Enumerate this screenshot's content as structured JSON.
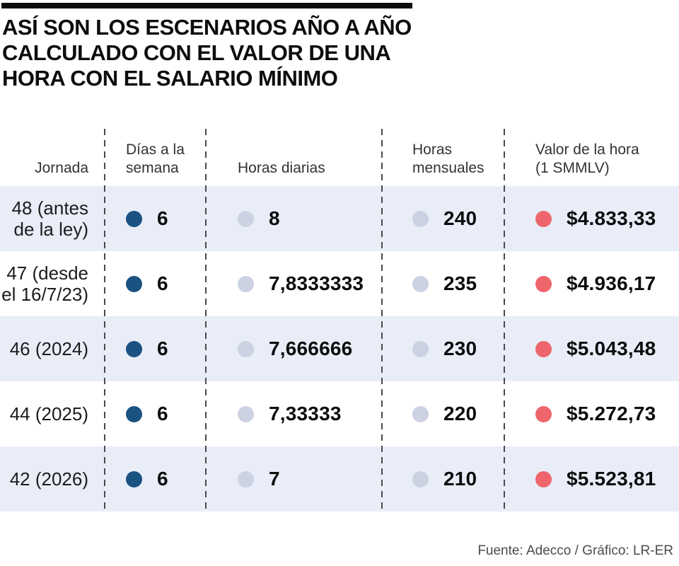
{
  "title_lines": [
    "ASÍ SON LOS ESCENARIOS AÑO A AÑO",
    "CALCULADO CON EL VALOR DE UNA",
    "HORA CON EL SALARIO MÍNIMO"
  ],
  "header": {
    "jornada": "Jornada",
    "dias_line1": "Días a la",
    "dias_line2": "semana",
    "horas_diarias": "Horas diarias",
    "mensuales_line1": "Horas",
    "mensuales_line2": "mensuales",
    "valor_line1": "Valor de la hora",
    "valor_line2": "(1 SMMLV)"
  },
  "rows": [
    {
      "jornada_line1": "48 (antes",
      "jornada_line2": "de la ley)",
      "dias": "6",
      "horas_diarias": "8",
      "horas_mensuales": "240",
      "valor_hora": "$4.833,33"
    },
    {
      "jornada_line1": "47 (desde",
      "jornada_line2": "el 16/7/23)",
      "dias": "6",
      "horas_diarias": "7,8333333",
      "horas_mensuales": "235",
      "valor_hora": "$4.936,17"
    },
    {
      "jornada_line1": "46 (2024)",
      "jornada_line2": "",
      "dias": "6",
      "horas_diarias": "7,666666",
      "horas_mensuales": "230",
      "valor_hora": "$5.043,48"
    },
    {
      "jornada_line1": "44 (2025)",
      "jornada_line2": "",
      "dias": "6",
      "horas_diarias": "7,33333",
      "horas_mensuales": "220",
      "valor_hora": "$5.272,73"
    },
    {
      "jornada_line1": "42 (2026)",
      "jornada_line2": "",
      "dias": "6",
      "horas_diarias": "7",
      "horas_mensuales": "210",
      "valor_hora": "$5.523,81"
    }
  ],
  "footer": {
    "credit": "Fuente: Adecco / Gráfico: LR-ER"
  },
  "colors": {
    "dot_dias": "#1a5282",
    "dot_neutral": "#ccd2e1",
    "dot_valor": "#ee666b",
    "row_shaded": "#e8edf8",
    "title": "#0d0d0d",
    "header_text": "#333333",
    "footer_text": "#4c4c4c"
  },
  "chart_data": {
    "type": "table",
    "title": "Así son los escenarios año a año calculado con el valor de una hora con el salario mínimo",
    "columns": [
      "Jornada",
      "Días a la semana",
      "Horas diarias",
      "Horas mensuales",
      "Valor de la hora (1 SMMLV)"
    ],
    "rows": [
      [
        "48 (antes de la ley)",
        6,
        8,
        240,
        "$4.833,33"
      ],
      [
        "47 (desde el 16/7/23)",
        6,
        7.8333333,
        235,
        "$4.936,17"
      ],
      [
        "46 (2024)",
        6,
        7.666666,
        230,
        "$5.043,48"
      ],
      [
        "44 (2025)",
        6,
        7.33333,
        220,
        "$5.272,73"
      ],
      [
        "42 (2026)",
        6,
        7,
        210,
        "$5.523,81"
      ]
    ],
    "source": "Fuente: Adecco / Gráfico: LR-ER"
  }
}
